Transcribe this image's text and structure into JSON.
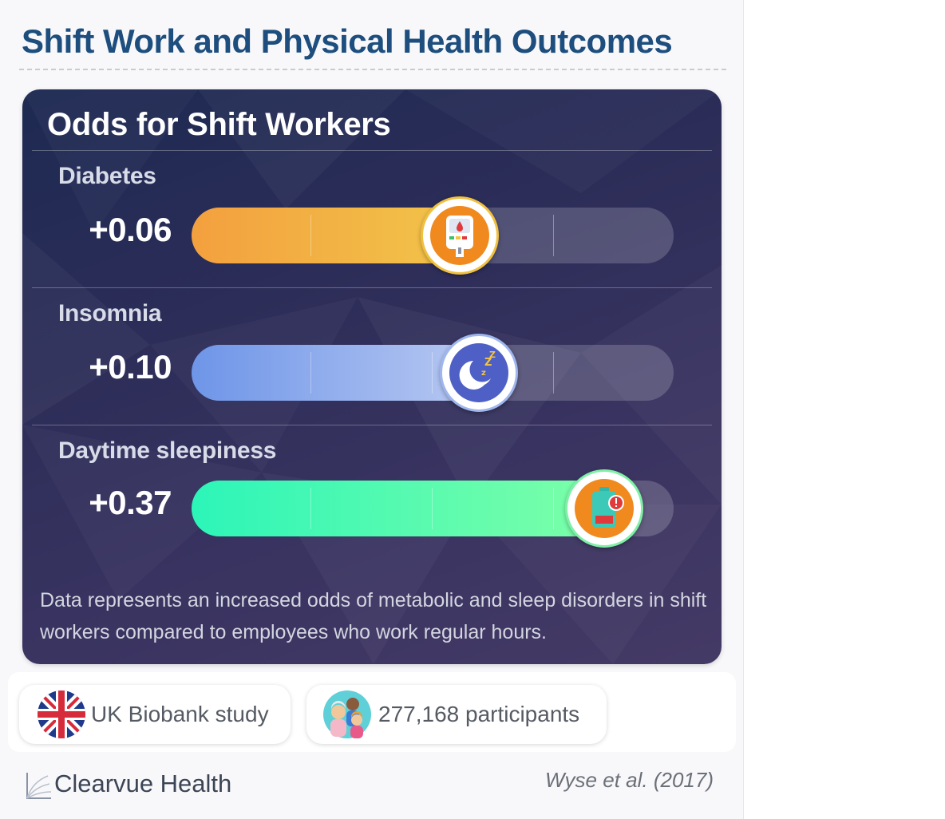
{
  "header": {
    "title": "Shift Work and Physical Health Outcomes"
  },
  "card": {
    "title": "Odds for Shift Workers",
    "footnote": "Data represents an increased odds of metabolic and sleep disorders in shift workers compared to employees who work regular hours."
  },
  "chart_data": {
    "type": "bar",
    "orientation": "horizontal",
    "title": "Odds for Shift Workers",
    "categories": [
      "Diabetes",
      "Insomnia",
      "Daytime sleepiness"
    ],
    "values": [
      0.06,
      0.1,
      0.37
    ],
    "value_labels": [
      "+0.06",
      "+0.10",
      "+0.37"
    ],
    "fill_fractions": [
      0.56,
      0.6,
      0.86
    ],
    "colors": [
      "#f3a03e",
      "#6e95e8",
      "#2cf5b8"
    ],
    "icons": [
      "glucose-meter-icon",
      "moon-sleep-icon",
      "low-battery-icon"
    ],
    "grid": true
  },
  "info": {
    "study_label": "UK Biobank study",
    "study_icon": "uk-flag-icon",
    "participants_label": "277,168 participants",
    "participants_icon": "people-group-icon"
  },
  "footer": {
    "brand": "Clearvue Health",
    "citation": "Wyse et al. (2017)"
  }
}
